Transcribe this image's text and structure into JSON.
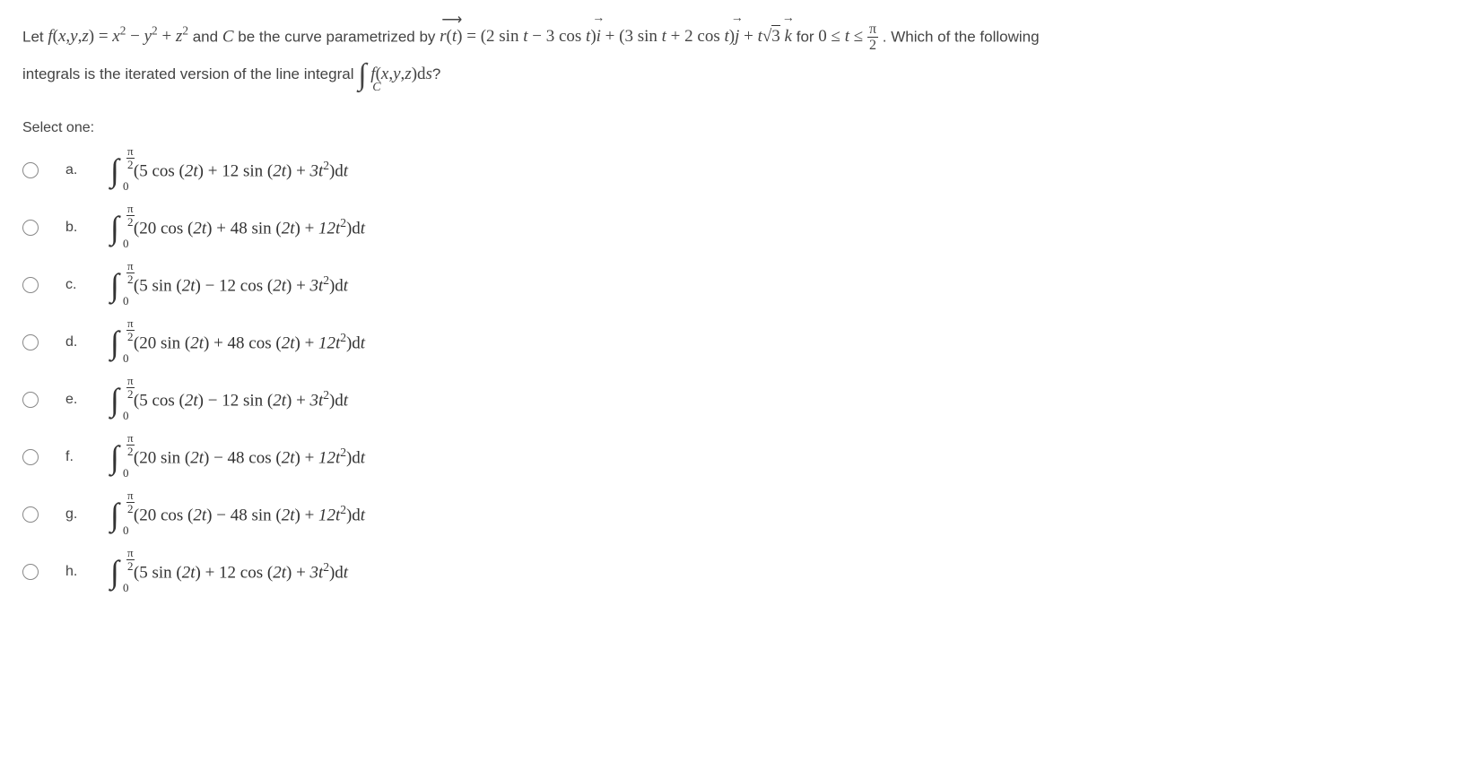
{
  "question": {
    "let_text": "Let ",
    "f_def": "f(x,y,z) = x² − y² + z²",
    "and_text": " and ",
    "curve_var": "C",
    "param_text": " be the curve parametrized by ",
    "r_def": "r(t) = (2 sin t − 3 cos t)i + (3 sin t + 2 cos t)j + t√3 k",
    "for_text": " for ",
    "domain": "0 ≤ t ≤ π/2",
    "which_text": ". Which of the following",
    "line2_pre": "integrals is the iterated version of the line integral ",
    "integral_expr": "∫_C f(x,y,z)ds",
    "line2_post": "?"
  },
  "select_one": "Select one:",
  "upper_limit": "π/2",
  "lower_limit": "0",
  "options": [
    {
      "label": "a.",
      "body": "(5 cos (2t) + 12 sin (2t) + 3t²)dt"
    },
    {
      "label": "b.",
      "body": "(20 cos (2t) + 48 sin (2t) + 12t²)dt"
    },
    {
      "label": "c.",
      "body": "(5 sin (2t) − 12 cos (2t) + 3t²)dt"
    },
    {
      "label": "d.",
      "body": "(20 sin (2t) + 48 cos (2t) + 12t²)dt"
    },
    {
      "label": "e.",
      "body": "(5 cos (2t) − 12 sin (2t) + 3t²)dt"
    },
    {
      "label": "f.",
      "body": "(20 sin (2t) − 48 cos (2t) + 12t²)dt"
    },
    {
      "label": "g.",
      "body": "(20 cos (2t) − 48 sin (2t) + 12t²)dt"
    },
    {
      "label": "h.",
      "body": "(5 sin (2t) + 12 cos (2t) + 3t²)dt"
    }
  ]
}
